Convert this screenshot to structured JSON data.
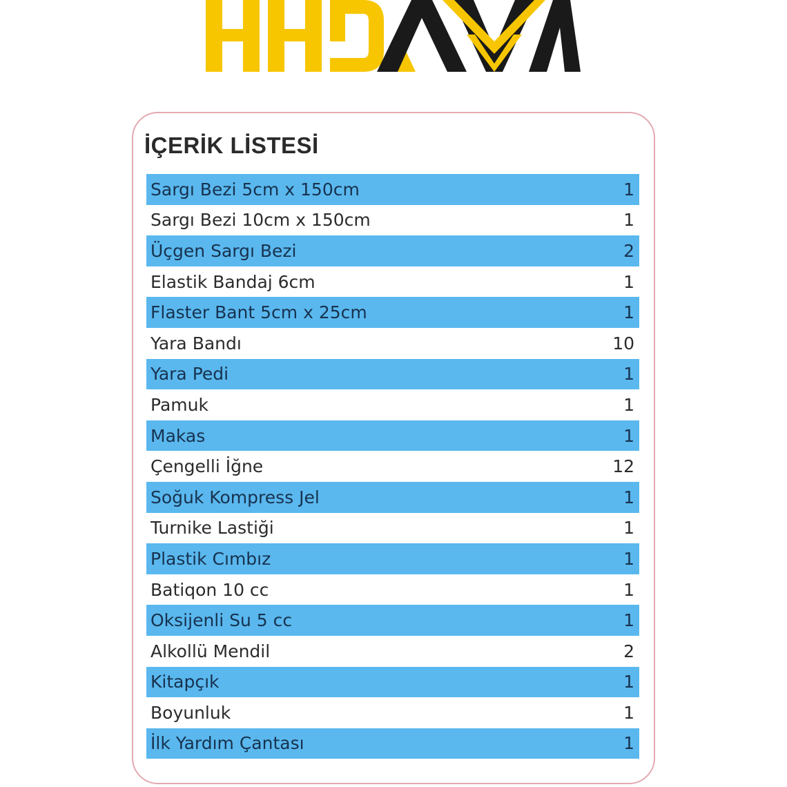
{
  "logo": {
    "text": "HHDAVM",
    "colors": {
      "yellow": "#f7c600",
      "black": "#1a1a1a"
    }
  },
  "title": "İÇERİK LİSTESİ",
  "colors": {
    "row_highlight": "#5ab8ee",
    "border": "#e3a9b0"
  },
  "items": [
    {
      "name": "Sargı Bezi  5cm x 150cm",
      "qty": "1"
    },
    {
      "name": "Sargı Bezi  10cm x 150cm",
      "qty": "1"
    },
    {
      "name": "Üçgen Sargı Bezi",
      "qty": "2"
    },
    {
      "name": "Elastik Bandaj  6cm",
      "qty": "1"
    },
    {
      "name": "Flaster Bant 5cm x 25cm",
      "qty": "1"
    },
    {
      "name": "Yara Bandı",
      "qty": "10"
    },
    {
      "name": "Yara Pedi",
      "qty": "1"
    },
    {
      "name": "Pamuk",
      "qty": "1"
    },
    {
      "name": "Makas",
      "qty": "1"
    },
    {
      "name": "Çengelli İğne",
      "qty": "12"
    },
    {
      "name": "Soğuk Kompress Jel",
      "qty": "1"
    },
    {
      "name": "Turnike Lastiği",
      "qty": "1"
    },
    {
      "name": "Plastik Cımbız",
      "qty": "1"
    },
    {
      "name": "Batiqon 10 cc",
      "qty": "1"
    },
    {
      "name": "Oksijenli Su 5 cc",
      "qty": "1"
    },
    {
      "name": "Alkollü Mendil",
      "qty": "2"
    },
    {
      "name": "Kitapçık",
      "qty": "1"
    },
    {
      "name": "Boyunluk",
      "qty": "1"
    },
    {
      "name": "İlk Yardım Çantası",
      "qty": "1"
    }
  ]
}
